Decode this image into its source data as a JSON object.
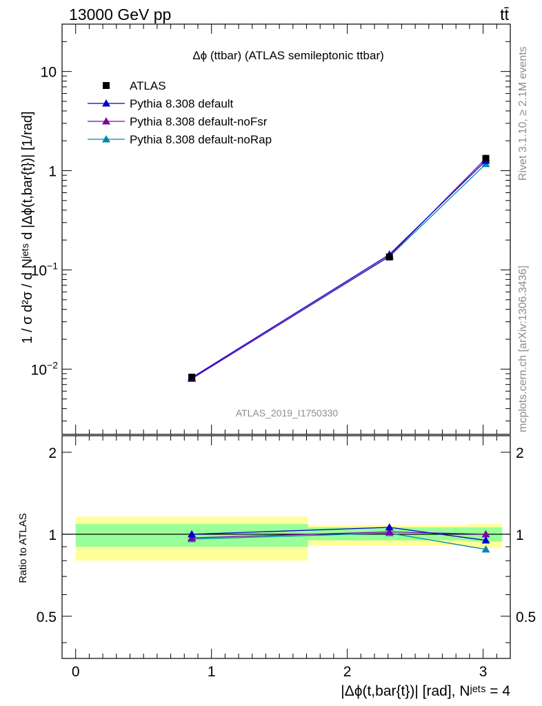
{
  "header": {
    "energy_label": "13000 GeV pp",
    "process_label": "tt̄",
    "rivet_label": "Rivet 3.1.10, ≥ 2.1M events",
    "mcplots_label": "mcplots.cern.ch [arXiv:1306.3436]",
    "analysis_id": "ATLAS_2019_I1750330"
  },
  "chart_data": [
    {
      "type": "line",
      "title": "Δϕ (ttbar) (ATLAS semileptonic ttbar)",
      "ylabel": "1 / σ d²σ / d Nʲᵉᵗˢ d |Δϕ(t,bar{t})| [1/rad]",
      "xlim": [
        -0.1,
        3.2
      ],
      "ylim": [
        0.0022,
        30
      ],
      "yscale": "log",
      "yticks": [
        {
          "value": 0.01,
          "base": "10",
          "exp": "−2"
        },
        {
          "value": 0.1,
          "base": "10",
          "exp": "−1"
        },
        {
          "value": 1,
          "label": "1"
        },
        {
          "value": 10,
          "label": "10"
        }
      ],
      "legend_position": "top-left",
      "series": [
        {
          "name": "ATLAS",
          "marker": "square",
          "color": "#000000",
          "x": [
            0.855,
            2.31,
            3.02
          ],
          "y": [
            0.0083,
            0.135,
            1.33
          ]
        },
        {
          "name": "Pythia 8.308 default",
          "marker": "triangle",
          "color": "#0000cc",
          "x": [
            0.855,
            2.31,
            3.02
          ],
          "y": [
            0.0082,
            0.143,
            1.26
          ]
        },
        {
          "name": "Pythia 8.308 default-noFsr",
          "marker": "triangle",
          "color": "#7f00aa",
          "x": [
            0.855,
            2.31,
            3.02
          ],
          "y": [
            0.008,
            0.138,
            1.33
          ]
        },
        {
          "name": "Pythia 8.308 default-noRap",
          "marker": "triangle",
          "color": "#0088aa",
          "x": [
            0.855,
            2.31,
            3.02
          ],
          "y": [
            0.008,
            0.136,
            1.17
          ]
        }
      ]
    },
    {
      "type": "line",
      "ylabel": "Ratio to ATLAS",
      "xlabel": "|Δϕ(t,bar{t})| [rad], Nʲᵉᵗˢ = 4",
      "xlim": [
        -0.1,
        3.2
      ],
      "ylim": [
        0.35,
        2.3
      ],
      "xticks": [
        0,
        1,
        2,
        3
      ],
      "yticks": [
        0.5,
        1,
        2
      ],
      "reference_line": 1,
      "bins": [
        {
          "x_low": 0,
          "x_high": 1.71,
          "inner": [
            0.9,
            1.09
          ],
          "outer": [
            0.8,
            1.16
          ]
        },
        {
          "x_low": 1.71,
          "x_high": 2.89,
          "inner": [
            0.95,
            1.06
          ],
          "outer": [
            0.91,
            1.08
          ]
        },
        {
          "x_low": 2.89,
          "x_high": 3.14,
          "inner": [
            0.94,
            1.06
          ],
          "outer": [
            0.89,
            1.09
          ]
        }
      ],
      "uncertainty_colors": {
        "inner": "#99ff99",
        "outer": "#ffff99"
      },
      "series": [
        {
          "name": "Pythia 8.308 default",
          "marker": "triangle",
          "color": "#0000cc",
          "x": [
            0.855,
            2.31,
            3.02
          ],
          "y": [
            1.0,
            1.06,
            0.95
          ]
        },
        {
          "name": "Pythia 8.308 default-noFsr",
          "marker": "triangle",
          "color": "#7f00aa",
          "x": [
            0.855,
            2.31,
            3.02
          ],
          "y": [
            0.97,
            1.02,
            1.0
          ]
        },
        {
          "name": "Pythia 8.308 default-noRap",
          "marker": "triangle",
          "color": "#0088aa",
          "x": [
            0.855,
            2.31,
            3.02
          ],
          "y": [
            0.96,
            1.01,
            0.88
          ]
        }
      ]
    }
  ]
}
